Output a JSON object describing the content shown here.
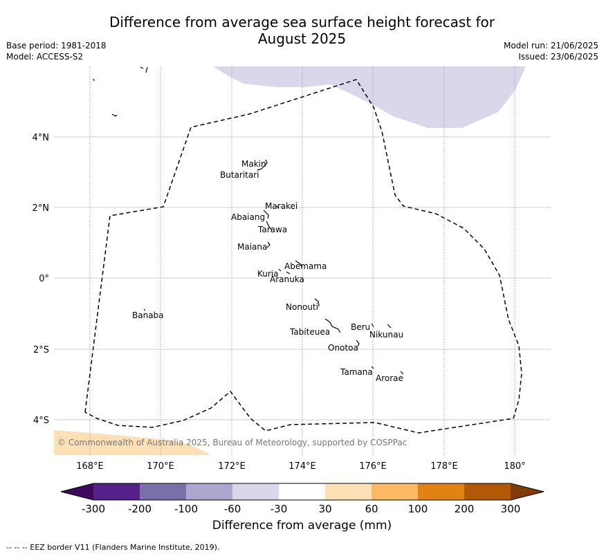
{
  "title_line1": "Difference from average sea surface height forecast for",
  "title_line2": "August 2025",
  "meta_left": [
    "Base period: 1981-2018",
    "Model: ACCESS-S2"
  ],
  "meta_right": [
    "Model run: 21/06/2025",
    "Issued: 23/06/2025"
  ],
  "lon_ticks": [
    "168°E",
    "170°E",
    "172°E",
    "174°E",
    "176°E",
    "178°E",
    "180°"
  ],
  "lat_ticks": [
    "4°N",
    "2°N",
    "0°",
    "2°S",
    "4°S"
  ],
  "islands": [
    {
      "name": "Makin",
      "lon": 173.0,
      "lat": 3.2
    },
    {
      "name": "Butaritari",
      "lon": 172.9,
      "lat": 3.05
    },
    {
      "name": "Marakei",
      "lon": 173.3,
      "lat": 2.0
    },
    {
      "name": "Abaiang",
      "lon": 173.0,
      "lat": 1.8
    },
    {
      "name": "Tarawa",
      "lon": 173.0,
      "lat": 1.45
    },
    {
      "name": "Maiana",
      "lon": 173.0,
      "lat": 0.95
    },
    {
      "name": "Abemama",
      "lon": 173.85,
      "lat": 0.45
    },
    {
      "name": "Kuria",
      "lon": 173.4,
      "lat": 0.22
    },
    {
      "name": "Aranuka",
      "lon": 173.6,
      "lat": 0.17
    },
    {
      "name": "Nonouti",
      "lon": 174.4,
      "lat": -0.65
    },
    {
      "name": "Banaba",
      "lon": 169.5,
      "lat": -0.88
    },
    {
      "name": "Beru",
      "lon": 176.0,
      "lat": -1.35
    },
    {
      "name": "Nikunau",
      "lon": 176.45,
      "lat": -1.35
    },
    {
      "name": "Tabiteuea",
      "lon": 175.0,
      "lat": -1.4
    },
    {
      "name": "Onotoa",
      "lon": 175.55,
      "lat": -1.8
    },
    {
      "name": "Tamana",
      "lon": 176.0,
      "lat": -2.5
    },
    {
      "name": "Arorae",
      "lon": 176.8,
      "lat": -2.65
    }
  ],
  "copyright": "© Commonwealth of Australia 2025, Bureau of Meteorology, supported by COSPPac",
  "colorbar": {
    "label": "Difference from average (mm)",
    "ticks": [
      "-300",
      "-200",
      "-100",
      "-60",
      "-30",
      "30",
      "60",
      "100",
      "200",
      "300"
    ],
    "colors": [
      "#3f0a5e",
      "#54218a",
      "#7b6fa9",
      "#ada6ce",
      "#d8d8ea",
      "#ffffff",
      "#fee0b6",
      "#fdb863",
      "#e08214",
      "#b35806",
      "#7f3b08"
    ]
  },
  "footnote": "--  --  -- EEZ border V11 (Flanders Marine Institute, 2019)."
}
